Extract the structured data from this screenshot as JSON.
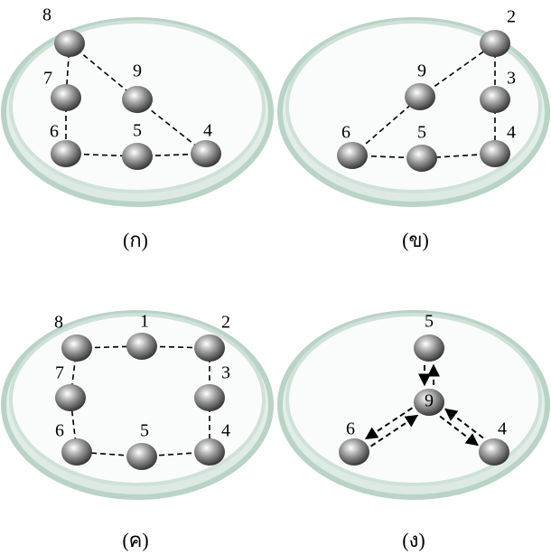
{
  "panels": [
    {
      "caption": "(ก)",
      "nodes": [
        {
          "label": "8"
        },
        {
          "label": "7"
        },
        {
          "label": "9"
        },
        {
          "label": "6"
        },
        {
          "label": "5"
        },
        {
          "label": "4"
        }
      ]
    },
    {
      "caption": "(ข)",
      "nodes": [
        {
          "label": "2"
        },
        {
          "label": "3"
        },
        {
          "label": "9"
        },
        {
          "label": "6"
        },
        {
          "label": "5"
        },
        {
          "label": "4"
        }
      ]
    },
    {
      "caption": "(ค)",
      "nodes": [
        {
          "label": "8"
        },
        {
          "label": "1"
        },
        {
          "label": "2"
        },
        {
          "label": "7"
        },
        {
          "label": "3"
        },
        {
          "label": "6"
        },
        {
          "label": "5"
        },
        {
          "label": "4"
        }
      ]
    },
    {
      "caption": "(ง)",
      "nodes": [
        {
          "label": "5"
        },
        {
          "label": "9"
        },
        {
          "label": "6"
        },
        {
          "label": "4"
        }
      ]
    }
  ]
}
